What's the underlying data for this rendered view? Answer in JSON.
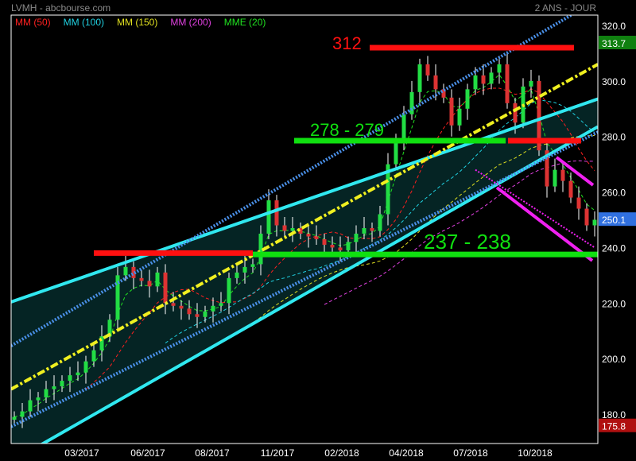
{
  "header": {
    "title": "LVMH - abcbourse.com",
    "period": "2 ANS - JOUR"
  },
  "chart_data": {
    "type": "candlestick",
    "legend": [
      {
        "label": "MM (50)",
        "color": "#ff2020",
        "window": 10
      },
      {
        "label": "MM (100)",
        "color": "#20d0e0",
        "window": 20
      },
      {
        "label": "MM (150)",
        "color": "#e0e020",
        "window": 30
      },
      {
        "label": "MM (200)",
        "color": "#e040e0",
        "window": 40
      },
      {
        "label": "MME (20)",
        "color": "#20e020",
        "window": 4,
        "ema": true
      }
    ],
    "legend_placement": "top-left",
    "ylim": [
      173,
      324
    ],
    "y_ticks": [
      "320.0",
      "300.0",
      "280.0",
      "260.0",
      "240.0",
      "220.0",
      "200.0",
      "180.0"
    ],
    "y_tick_values": [
      320,
      300,
      280,
      260,
      240,
      220,
      200,
      180
    ],
    "x_ticks": [
      "03/2017",
      "06/2017",
      "08/2017",
      "11/2017",
      "02/2018",
      "04/2018",
      "07/2018",
      "10/2018"
    ],
    "x_tick_index": [
      8.5,
      16.8,
      24.9,
      33.1,
      41.2,
      49.3,
      57.4,
      65.5
    ],
    "closes": [
      179,
      181,
      185,
      186,
      189,
      190,
      192,
      194,
      195,
      199,
      203,
      208,
      214,
      230,
      233,
      229,
      228,
      226,
      231,
      220,
      219,
      218,
      216,
      215,
      217,
      219,
      220,
      229,
      231,
      233,
      234,
      245,
      257,
      248,
      246,
      247,
      245,
      244,
      243,
      241,
      240,
      239,
      242,
      245,
      247,
      246,
      252,
      270,
      279,
      288,
      296,
      306,
      302,
      297,
      294,
      284,
      290,
      297,
      302,
      299,
      303,
      306,
      292,
      285,
      298,
      300,
      275,
      262,
      268,
      264,
      258,
      254,
      248,
      250
    ],
    "price_badges": [
      {
        "label": "313.7",
        "value": 313.7,
        "color": "#108010"
      },
      {
        "label": "250.1",
        "value": 250.1,
        "color": "#3070e0"
      },
      {
        "label": "175.8",
        "value": 175.8,
        "color": "#b01010"
      }
    ],
    "levels": [
      {
        "label": "312",
        "value": 312,
        "color": "#ff1010",
        "from": 44.7,
        "to": 70.4,
        "label_at": 40
      },
      {
        "label": "278 - 279",
        "value": 278.5,
        "color": "#10e010",
        "from": 35.2,
        "to": 61.8,
        "label_at": 37.2
      },
      {
        "label": "",
        "value": 278.5,
        "color": "#ff1010",
        "from": 62.1,
        "to": 71.3
      },
      {
        "label": "",
        "value": 238,
        "color": "#ff1010",
        "from": 10,
        "to": 30
      },
      {
        "label": "237 - 238",
        "value": 237.5,
        "color": "#10e010",
        "from": 30,
        "to": 73.4,
        "label_at": 51.5
      }
    ],
    "channel": {
      "upper": [
        [
          -0.4,
          220.4
        ],
        [
          73.4,
          293.5
        ]
      ],
      "upper_dotted": [
        [
          -0.4,
          204.6
        ],
        [
          69.2,
          322.3
        ]
      ],
      "median": [
        [
          -0.4,
          189
        ],
        [
          73.4,
          306
        ]
      ],
      "lower_dotted": [
        [
          -0.4,
          175.5
        ],
        [
          73.4,
          281.6
        ]
      ],
      "lower": [
        [
          6,
          173.3
        ],
        [
          73.4,
          283.5
        ]
      ]
    },
    "down_channel": {
      "lower": [
        [
          60.7,
          261.6
        ],
        [
          72.7,
          235.3
        ]
      ],
      "lower_dotted": [
        [
          58,
          268
        ],
        [
          73,
          240
        ]
      ],
      "upper": [
        [
          68.2,
          272.5
        ],
        [
          72.8,
          262.5
        ]
      ]
    }
  }
}
